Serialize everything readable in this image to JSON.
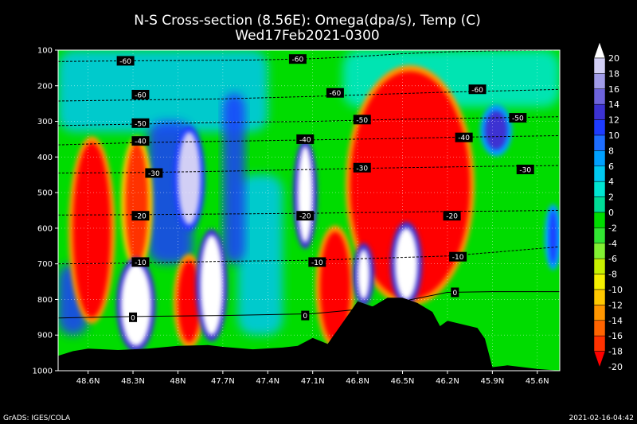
{
  "chart_data": {
    "type": "heatmap",
    "title": "N-S Cross-section (8.56E): Omega(dpa/s), Temp (C)",
    "subtitle": "Wed17Feb2021-0300",
    "y_axis": {
      "ticks": [
        "100",
        "200",
        "300",
        "400",
        "500",
        "600",
        "700",
        "800",
        "900",
        "1000"
      ],
      "range": [
        100,
        1000
      ],
      "inverted": true,
      "grid": true
    },
    "x_axis": {
      "ticks": [
        "48.6N",
        "48.3N",
        "48N",
        "47.7N",
        "47.4N",
        "47.1N",
        "46.8N",
        "46.5N",
        "46.2N",
        "45.9N",
        "45.6N"
      ],
      "ticks_numeric": [
        48.6,
        48.3,
        48.0,
        47.7,
        47.4,
        47.1,
        46.8,
        46.5,
        46.2,
        45.9,
        45.6
      ],
      "range": [
        48.8,
        45.45
      ],
      "grid": true
    },
    "colorbar": {
      "labels": [
        "20",
        "18",
        "16",
        "14",
        "12",
        "10",
        "8",
        "6",
        "4",
        "2",
        "0",
        "-2",
        "-4",
        "-6",
        "-8",
        "-10",
        "-12",
        "-14",
        "-16",
        "-18",
        "-20"
      ],
      "values": [
        20,
        18,
        16,
        14,
        12,
        10,
        8,
        6,
        4,
        2,
        0,
        -2,
        -4,
        -6,
        -8,
        -10,
        -12,
        -14,
        -16,
        -18,
        -20
      ],
      "colors": [
        "#ffffff",
        "#d2cff5",
        "#a09be8",
        "#6e64dc",
        "#3c32d2",
        "#1e3cff",
        "#1e6eff",
        "#00a0ff",
        "#00c8f0",
        "#00e6d2",
        "#00dc96",
        "#00dc00",
        "#32e632",
        "#82f032",
        "#c8f000",
        "#f5f000",
        "#ffc800",
        "#ff9600",
        "#ff6400",
        "#ff3200",
        "#ff0000"
      ],
      "placement": "right"
    },
    "temperature_isotherms": [
      {
        "value": -60,
        "label": "-60",
        "label_positions": [
          [
            48.35,
            130
          ],
          [
            48.25,
            225
          ],
          [
            47.2,
            125
          ],
          [
            46.95,
            220
          ],
          [
            46.0,
            210
          ]
        ],
        "pressures": [
          [
            48.8,
            132
          ],
          [
            48.3,
            130
          ],
          [
            47.5,
            128
          ],
          [
            47.1,
            124
          ],
          [
            46.8,
            118
          ],
          [
            46.5,
            110
          ],
          [
            46.2,
            105
          ],
          [
            45.9,
            102
          ],
          [
            45.45,
            100
          ]
        ]
      },
      {
        "value": -60,
        "label": "-60",
        "label_positions": [],
        "pressures": [
          [
            48.8,
            243
          ],
          [
            48.3,
            240
          ],
          [
            47.7,
            237
          ],
          [
            47.1,
            230
          ],
          [
            46.8,
            226
          ],
          [
            46.5,
            222
          ],
          [
            46.2,
            218
          ],
          [
            45.9,
            215
          ],
          [
            45.45,
            210
          ]
        ]
      },
      {
        "value": -50,
        "label": "-50",
        "label_positions": [
          [
            48.25,
            305
          ],
          [
            46.77,
            295
          ],
          [
            45.73,
            290
          ]
        ],
        "pressures": [
          [
            48.8,
            312
          ],
          [
            48.3,
            308
          ],
          [
            47.7,
            303
          ],
          [
            47.1,
            300
          ],
          [
            46.8,
            297
          ],
          [
            46.5,
            294
          ],
          [
            46.2,
            292
          ],
          [
            45.9,
            290
          ],
          [
            45.45,
            287
          ]
        ]
      },
      {
        "value": -40,
        "label": "-40",
        "label_positions": [
          [
            48.25,
            355
          ],
          [
            47.15,
            350
          ],
          [
            46.09,
            345
          ]
        ],
        "pressures": [
          [
            48.8,
            366
          ],
          [
            48.3,
            360
          ],
          [
            47.7,
            356
          ],
          [
            47.1,
            352
          ],
          [
            46.8,
            350
          ],
          [
            46.5,
            348
          ],
          [
            46.2,
            345
          ],
          [
            45.9,
            343
          ],
          [
            45.45,
            340
          ]
        ]
      },
      {
        "value": -30,
        "label": "-30",
        "label_positions": [
          [
            48.16,
            445
          ],
          [
            46.77,
            430
          ],
          [
            45.68,
            435
          ]
        ],
        "pressures": [
          [
            48.8,
            445
          ],
          [
            48.3,
            444
          ],
          [
            47.7,
            440
          ],
          [
            47.1,
            435
          ],
          [
            46.8,
            432
          ],
          [
            46.5,
            430
          ],
          [
            46.2,
            428
          ],
          [
            45.9,
            426
          ],
          [
            45.45,
            424
          ]
        ]
      },
      {
        "value": -20,
        "label": "-20",
        "label_positions": [
          [
            48.25,
            565
          ],
          [
            47.15,
            565
          ],
          [
            46.17,
            565
          ]
        ],
        "pressures": [
          [
            48.8,
            563
          ],
          [
            48.3,
            562
          ],
          [
            47.7,
            560
          ],
          [
            47.1,
            558
          ],
          [
            46.8,
            556
          ],
          [
            46.5,
            555
          ],
          [
            46.2,
            553
          ],
          [
            45.9,
            552
          ],
          [
            45.45,
            550
          ]
        ]
      },
      {
        "value": -10,
        "label": "-10",
        "label_positions": [
          [
            48.25,
            695
          ],
          [
            47.07,
            695
          ],
          [
            46.13,
            680
          ]
        ],
        "pressures": [
          [
            48.8,
            700
          ],
          [
            48.3,
            698
          ],
          [
            47.7,
            693
          ],
          [
            47.1,
            690
          ],
          [
            46.8,
            686
          ],
          [
            46.5,
            682
          ],
          [
            46.2,
            678
          ],
          [
            45.9,
            668
          ],
          [
            45.45,
            652
          ]
        ]
      },
      {
        "value": 0,
        "label": "0",
        "label_positions": [
          [
            48.3,
            850
          ],
          [
            47.15,
            845
          ],
          [
            46.15,
            780
          ]
        ],
        "pressures": [
          [
            48.8,
            852
          ],
          [
            48.3,
            848
          ],
          [
            47.7,
            845
          ],
          [
            47.1,
            840
          ],
          [
            46.8,
            828
          ],
          [
            46.5,
            805
          ],
          [
            46.2,
            780
          ],
          [
            45.9,
            778
          ],
          [
            45.45,
            778
          ]
        ]
      }
    ],
    "terrain_surface_pressure": [
      [
        48.8,
        958
      ],
      [
        48.7,
        945
      ],
      [
        48.6,
        938
      ],
      [
        48.4,
        942
      ],
      [
        48.2,
        938
      ],
      [
        48.0,
        930
      ],
      [
        47.8,
        928
      ],
      [
        47.7,
        933
      ],
      [
        47.5,
        940
      ],
      [
        47.3,
        935
      ],
      [
        47.2,
        930
      ],
      [
        47.1,
        908
      ],
      [
        47.0,
        925
      ],
      [
        46.9,
        865
      ],
      [
        46.8,
        805
      ],
      [
        46.7,
        820
      ],
      [
        46.6,
        795
      ],
      [
        46.5,
        795
      ],
      [
        46.4,
        810
      ],
      [
        46.3,
        835
      ],
      [
        46.25,
        875
      ],
      [
        46.2,
        860
      ],
      [
        46.1,
        870
      ],
      [
        46.0,
        880
      ],
      [
        45.95,
        910
      ],
      [
        45.9,
        990
      ],
      [
        45.8,
        985
      ],
      [
        45.7,
        990
      ],
      [
        45.6,
        995
      ],
      [
        45.45,
        1000
      ]
    ],
    "omega_features": [
      {
        "value": -20,
        "lat_range": [
          48.7,
          48.45
        ],
        "p_range": [
          360,
          850
        ]
      },
      {
        "value": -18,
        "lat_range": [
          48.35,
          48.2
        ],
        "p_range": [
          360,
          700
        ]
      },
      {
        "value": -20,
        "lat_range": [
          48.0,
          47.85
        ],
        "p_range": [
          690,
          920
        ]
      },
      {
        "value": 20,
        "lat_range": [
          48.38,
          48.18
        ],
        "p_range": [
          700,
          930
        ]
      },
      {
        "value": 20,
        "lat_range": [
          47.85,
          47.7
        ],
        "p_range": [
          620,
          900
        ]
      },
      {
        "value": 18,
        "lat_range": [
          48.0,
          47.85
        ],
        "p_range": [
          330,
          590
        ]
      },
      {
        "value": 20,
        "lat_range": [
          47.2,
          47.1
        ],
        "p_range": [
          370,
          640
        ]
      },
      {
        "value": -20,
        "lat_range": [
          47.05,
          46.85
        ],
        "p_range": [
          610,
          920
        ]
      },
      {
        "value": -20,
        "lat_range": [
          46.85,
          46.05
        ],
        "p_range": [
          160,
          800
        ]
      },
      {
        "value": 20,
        "lat_range": [
          46.55,
          46.4
        ],
        "p_range": [
          600,
          800
        ]
      },
      {
        "value": 20,
        "lat_range": [
          46.8,
          46.72
        ],
        "p_range": [
          660,
          800
        ]
      },
      {
        "value": 12,
        "lat_range": [
          45.95,
          45.8
        ],
        "p_range": [
          270,
          380
        ]
      },
      {
        "value": 10,
        "lat_range": [
          45.52,
          45.47
        ],
        "p_range": [
          550,
          700
        ]
      }
    ]
  },
  "footer": {
    "left": "GrADS: IGES/COLA",
    "right": "2021-02-16-04:42"
  }
}
